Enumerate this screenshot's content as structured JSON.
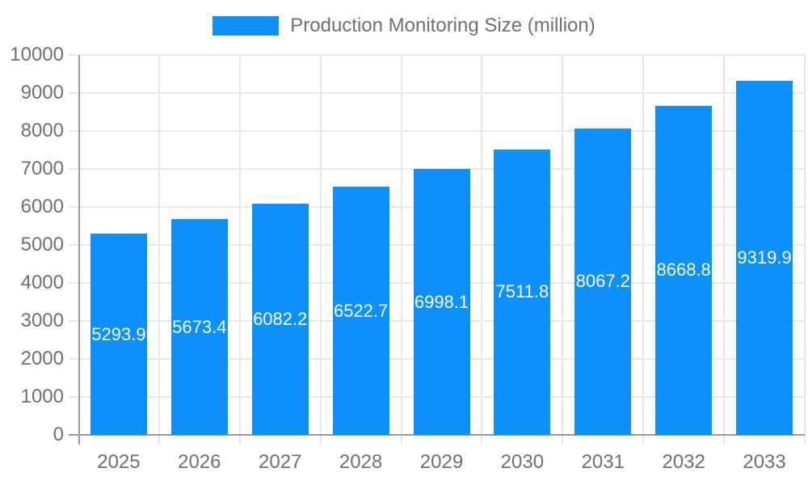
{
  "chart_data": {
    "type": "bar",
    "title": "Production Monitoring Size (million)",
    "legend_position": "top",
    "categories": [
      "2025",
      "2026",
      "2027",
      "2028",
      "2029",
      "2030",
      "2031",
      "2032",
      "2033"
    ],
    "values": [
      5293.9,
      5673.4,
      6082.2,
      6522.7,
      6998.1,
      7511.8,
      8067.2,
      8668.8,
      9319.9
    ],
    "value_labels": [
      "5293.9",
      "5673.4",
      "6082.2",
      "6522.7",
      "6998.1",
      "7511.8",
      "8067.2",
      "8668.8",
      "9319.9"
    ],
    "value_label_position": "inside-center",
    "xlabel": "",
    "ylabel": "",
    "ylim": [
      0,
      10000
    ],
    "ytick_step": 1000,
    "ytick_labels": [
      "0",
      "1000",
      "2000",
      "3000",
      "4000",
      "5000",
      "6000",
      "7000",
      "8000",
      "9000",
      "10000"
    ],
    "grid": true,
    "colors": {
      "bar": "#0d90fa",
      "grid_line": "#e7e7e7",
      "axis_line": "#9a9a9a",
      "tick_text": "#707070",
      "value_text": "#ffffff",
      "background": "#ffffff"
    }
  }
}
